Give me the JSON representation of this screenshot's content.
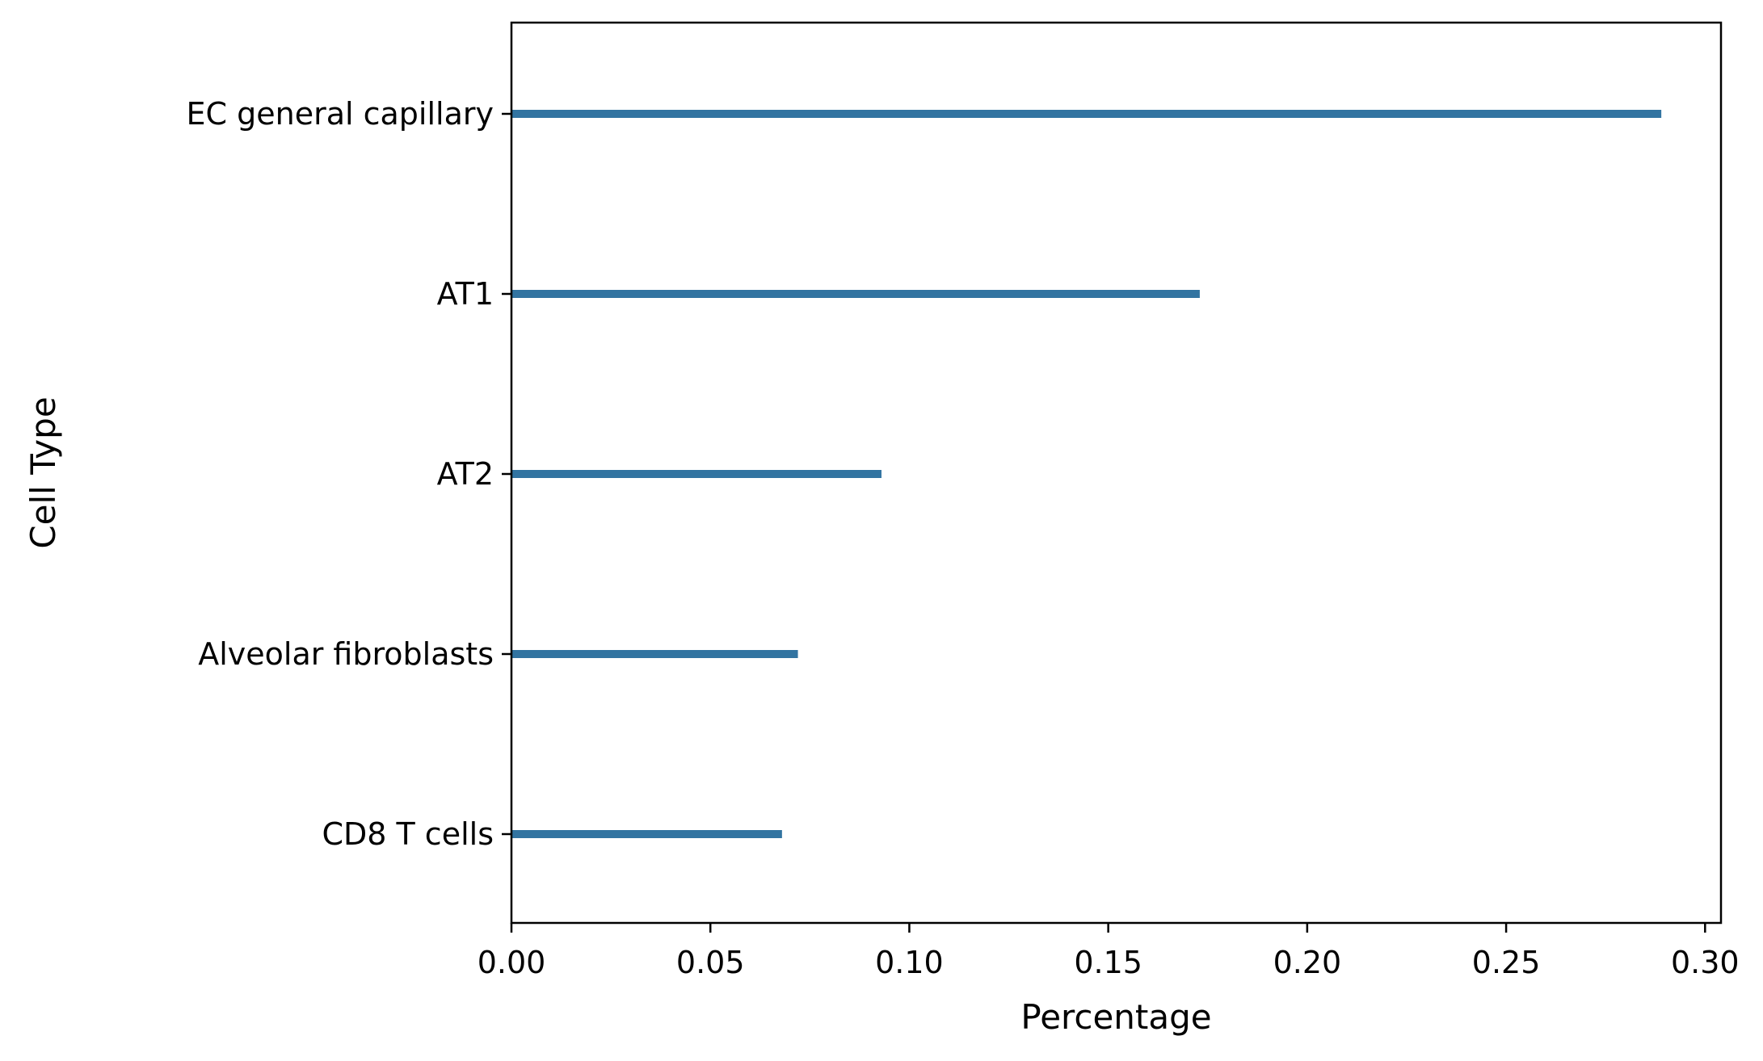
{
  "chart_data": {
    "type": "bar",
    "orientation": "horizontal",
    "categories": [
      "EC general capillary",
      "AT1",
      "AT2",
      "Alveolar fibroblasts",
      "CD8 T cells"
    ],
    "values": [
      0.289,
      0.173,
      0.093,
      0.072,
      0.068
    ],
    "xlabel": "Percentage",
    "ylabel": "Cell Type",
    "xlim": [
      0.0,
      0.304
    ],
    "xticks": [
      "0.00",
      "0.05",
      "0.10",
      "0.15",
      "0.20",
      "0.25",
      "0.30"
    ],
    "bar_color": "#3274a1",
    "grid": false,
    "legend": "none"
  }
}
